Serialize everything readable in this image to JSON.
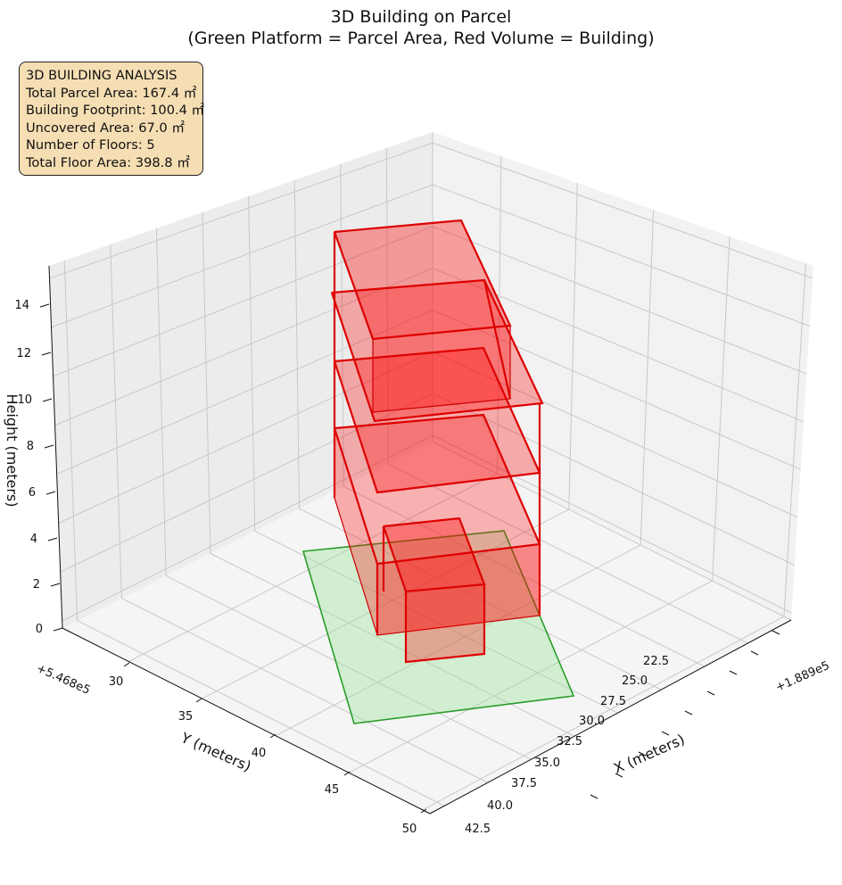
{
  "chart_data": {
    "type": "3d-volume",
    "title": [
      "3D Building on Parcel",
      "(Green Platform = Parcel Area, Red Volume = Building)"
    ],
    "xlabel": "X (meters)",
    "ylabel": "Y (meters)",
    "zlabel": "Height (meters)",
    "x_offset_label": "+1.889e5",
    "y_offset_label": "+5.468e5",
    "x_ticks": [
      "22.5",
      "25.0",
      "27.5",
      "30.0",
      "32.5",
      "35.0",
      "37.5",
      "40.0",
      "42.5"
    ],
    "y_ticks": [
      "30",
      "35",
      "40",
      "45",
      "50"
    ],
    "z_ticks": [
      "0",
      "2",
      "4",
      "6",
      "8",
      "10",
      "12",
      "14"
    ],
    "parcel_color": "#9be39b",
    "building_color": "#ff0000",
    "parcel": {
      "name": "Parcel Area",
      "area_m2": 167.4
    },
    "building": {
      "name": "Building",
      "footprint_m2": 100.4,
      "floors": 5,
      "total_floor_area_m2": 398.8
    }
  },
  "info_box": {
    "lines": [
      "3D BUILDING ANALYSIS",
      "Total Parcel Area: 167.4 ㎡",
      "Building Footprint: 100.4 ㎡",
      "Uncovered Area: 67.0 ㎡",
      "Number of Floors: 5",
      "Total Floor Area: 398.8 ㎡"
    ]
  }
}
